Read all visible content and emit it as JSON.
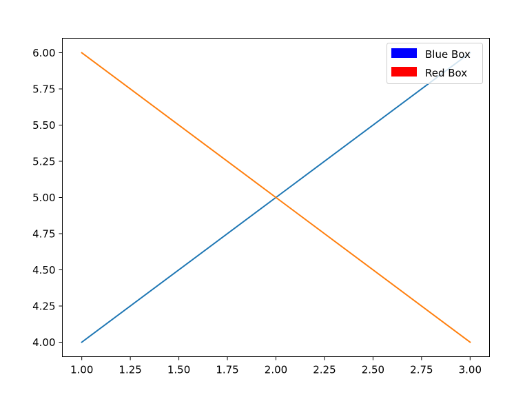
{
  "chart_data": {
    "type": "line",
    "title": "",
    "xlabel": "",
    "ylabel": "",
    "xlim": [
      0.9,
      3.1
    ],
    "ylim": [
      3.9,
      6.1
    ],
    "x_ticks": [
      1.0,
      1.25,
      1.5,
      1.75,
      2.0,
      2.25,
      2.5,
      2.75,
      3.0
    ],
    "x_tick_labels": [
      "1.00",
      "1.25",
      "1.50",
      "1.75",
      "2.00",
      "2.25",
      "2.50",
      "2.75",
      "3.00"
    ],
    "y_ticks": [
      4.0,
      4.25,
      4.5,
      4.75,
      5.0,
      5.25,
      5.5,
      5.75,
      6.0
    ],
    "y_tick_labels": [
      "4.00",
      "4.25",
      "4.50",
      "4.75",
      "5.00",
      "5.25",
      "5.50",
      "5.75",
      "6.00"
    ],
    "grid": false,
    "series": [
      {
        "x": [
          1,
          2,
          3
        ],
        "y": [
          4,
          5,
          6
        ],
        "color": "#1f77b4"
      },
      {
        "x": [
          1,
          2,
          3
        ],
        "y": [
          6,
          5,
          4
        ],
        "color": "#ff7f0e"
      }
    ],
    "legend": {
      "placement": "top-right",
      "entries": [
        {
          "label": "Blue Box",
          "color": "#0000ff"
        },
        {
          "label": "Red Box",
          "color": "#ff0000"
        }
      ]
    }
  }
}
